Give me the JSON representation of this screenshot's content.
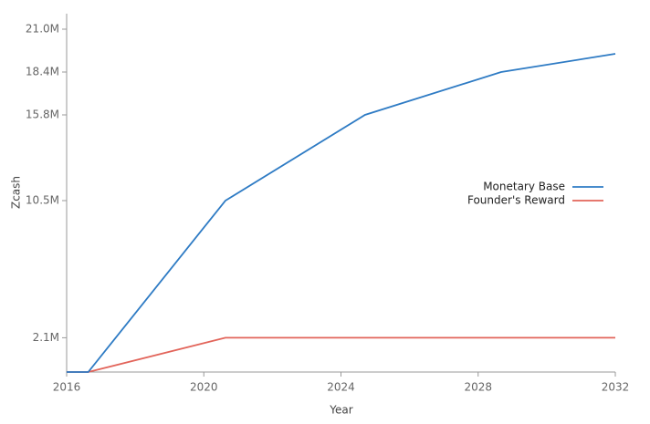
{
  "chart_data": {
    "type": "line",
    "x_label": "Year",
    "y_label": "Zcash",
    "x": [
      2016,
      2016.63,
      2020.63,
      2024.7,
      2028.67,
      2032
    ],
    "series": [
      {
        "name": "Monetary Base",
        "color": "#2e7bc4",
        "values": [
          0,
          0,
          10500000,
          15750000,
          18375000,
          19490000
        ]
      },
      {
        "name": "Founder's Reward",
        "color": "#e2645a",
        "values": [
          0,
          0,
          2100000,
          2100000,
          2100000,
          2100000
        ]
      }
    ],
    "xlim": [
      2016,
      2032
    ],
    "xticks": [
      2016,
      2020,
      2024,
      2028,
      2032
    ],
    "ylim": [
      0,
      21950000
    ],
    "yticks": [
      {
        "value": 2100000,
        "label": "2.1M"
      },
      {
        "value": 10500000,
        "label": "10.5M"
      },
      {
        "value": 15750000,
        "label": "15.8M"
      },
      {
        "value": 18375000,
        "label": "18.4M"
      },
      {
        "value": 21000000,
        "label": "21.0M"
      }
    ],
    "grid": false,
    "legend": "right"
  }
}
